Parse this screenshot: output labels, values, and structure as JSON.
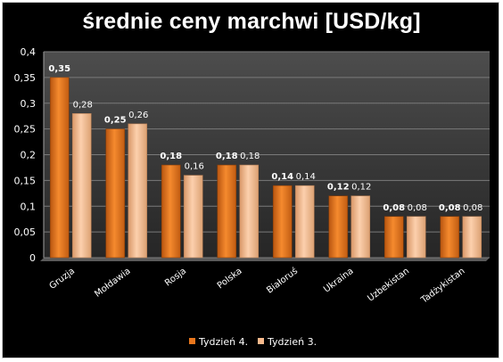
{
  "chart_data": {
    "type": "bar",
    "title": "średnie ceny marchwi [USD/kg]",
    "categories": [
      "Gruzja",
      "Mołdawia",
      "Rosja",
      "Polska",
      "Białoruś",
      "Ukraina",
      "Uzbekistan",
      "Tadżykistan"
    ],
    "series": [
      {
        "name": "Tydzień 4.",
        "values": [
          0.35,
          0.25,
          0.18,
          0.18,
          0.14,
          0.12,
          0.08,
          0.08
        ],
        "labels": [
          "0,35",
          "0,25",
          "0,18",
          "0,18",
          "0,14",
          "0,12",
          "0,08",
          "0,08"
        ],
        "color": "#e8761c"
      },
      {
        "name": "Tydzień 3.",
        "values": [
          0.28,
          0.26,
          0.16,
          0.18,
          0.14,
          0.12,
          0.08,
          0.08
        ],
        "labels": [
          "0,28",
          "0,26",
          "0,16",
          "0,18",
          "0,14",
          "0,12",
          "0,08",
          "0,08"
        ],
        "color": "#f7b98c"
      }
    ],
    "ylim": [
      0,
      0.4
    ],
    "yticks": [
      "0",
      "0,05",
      "0,1",
      "0,15",
      "0,2",
      "0,25",
      "0,3",
      "0,35",
      "0,4"
    ],
    "grid": true,
    "legend_position": "bottom",
    "colors": {
      "background": "#000000",
      "plot_area_top": "#4a4a4a",
      "plot_area_bottom": "#2b2b2b",
      "gridline": "#8a8a8a"
    }
  }
}
